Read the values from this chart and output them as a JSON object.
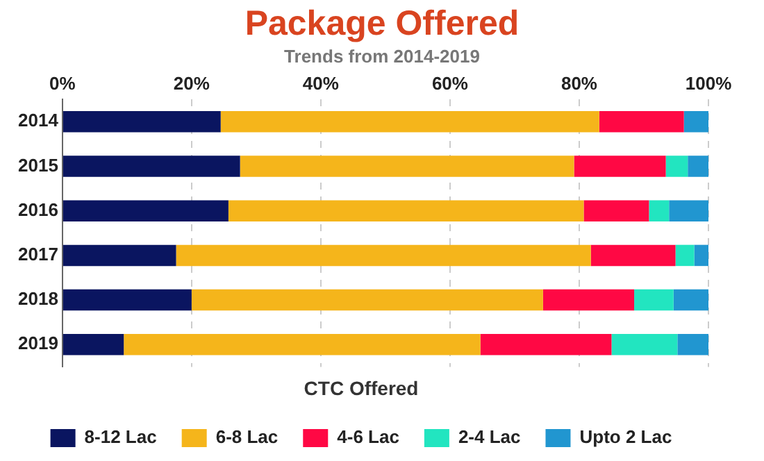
{
  "chart_data": {
    "type": "bar",
    "orientation": "horizontal",
    "stacked": true,
    "title": "Package Offered",
    "subtitle": "Trends from 2014-2019",
    "xlabel": "CTC Offered",
    "categories": [
      "2014",
      "2015",
      "2016",
      "2017",
      "2018",
      "2019"
    ],
    "series": [
      {
        "name": "8-12 Lac",
        "color": "#0a1560",
        "values": [
          24.5,
          27.5,
          25.7,
          17.6,
          20.0,
          9.5
        ]
      },
      {
        "name": "6-8 Lac",
        "color": "#f5b51b",
        "values": [
          58.6,
          51.7,
          55.0,
          64.2,
          54.4,
          55.2
        ]
      },
      {
        "name": "4-6 Lac",
        "color": "#ff0844",
        "values": [
          13.1,
          14.2,
          10.1,
          13.1,
          14.1,
          20.3
        ]
      },
      {
        "name": "2-4 Lac",
        "color": "#22e5c0",
        "values": [
          0,
          3.4,
          3.1,
          2.9,
          6.1,
          10.2
        ]
      },
      {
        "name": "Upto 2 Lac",
        "color": "#2196d0",
        "values": [
          3.8,
          3.2,
          6.1,
          2.2,
          5.4,
          4.8
        ]
      }
    ],
    "xlim": [
      0,
      100
    ],
    "xticks": [
      {
        "value": 0,
        "label": "0%"
      },
      {
        "value": 20,
        "label": "20%"
      },
      {
        "value": 40,
        "label": "40%"
      },
      {
        "value": 60,
        "label": "60%"
      },
      {
        "value": 80,
        "label": "80%"
      },
      {
        "value": 100,
        "label": "100%"
      }
    ],
    "grid": "x",
    "legend": "bottom"
  }
}
